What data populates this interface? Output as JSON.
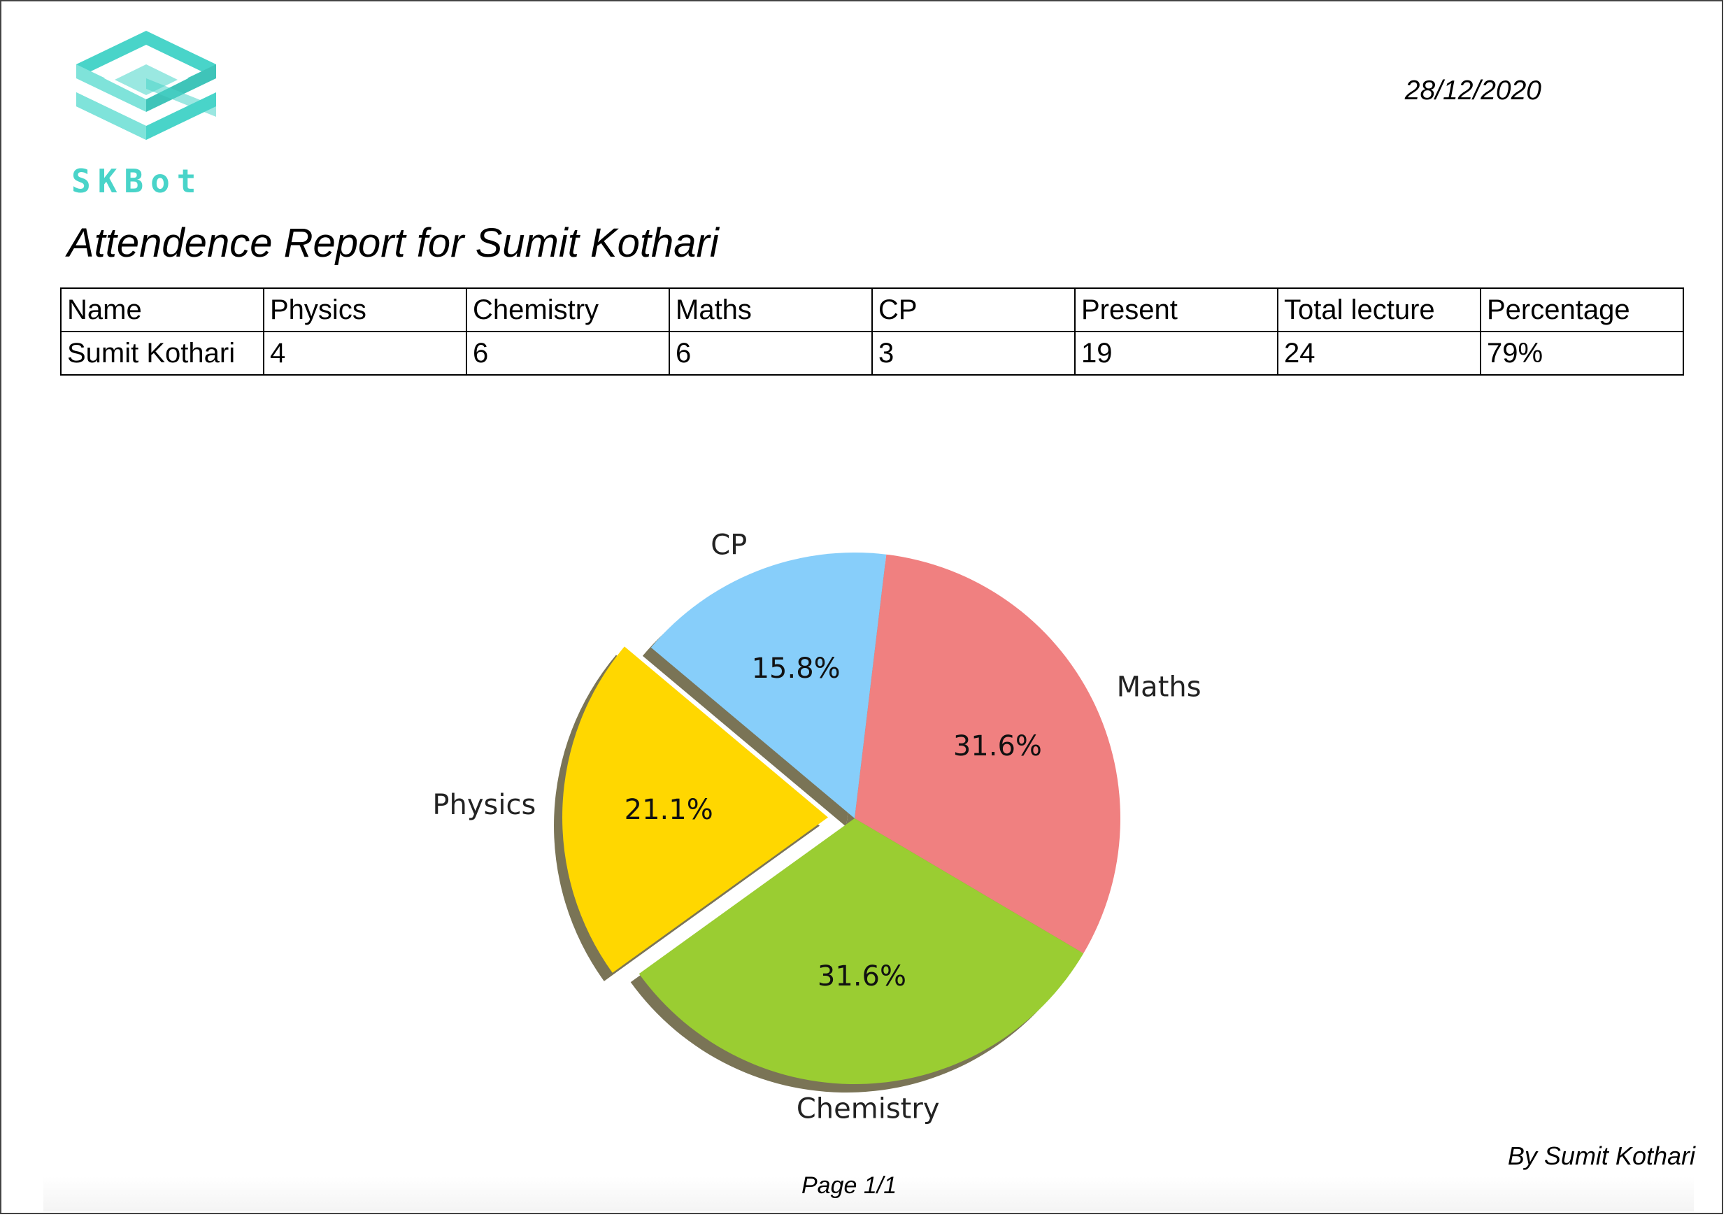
{
  "brand": {
    "logo_text": "SKBot",
    "logo_icon": "skbot-logo-icon",
    "accent": "#49d4c9"
  },
  "header": {
    "date": "28/12/2020"
  },
  "report": {
    "title": "Attendence Report for Sumit Kothari"
  },
  "table": {
    "headers": [
      "Name",
      "Physics",
      "Chemistry",
      "Maths",
      "CP",
      "Present",
      "Total lecture",
      "Percentage"
    ],
    "rows": [
      [
        "Sumit Kothari",
        "4",
        "6",
        "6",
        "3",
        "19",
        "24",
        "79%"
      ]
    ]
  },
  "chart_data": {
    "type": "pie",
    "categories": [
      "Physics",
      "Chemistry",
      "Maths",
      "CP"
    ],
    "values": [
      4,
      6,
      6,
      3
    ],
    "percent_labels": [
      "21.1%",
      "31.6%",
      "31.6%",
      "15.8%"
    ],
    "colors": [
      "#ffd700",
      "#9acd32",
      "#f08080",
      "#87cefa"
    ],
    "exploded": [
      "Physics"
    ],
    "shadow": true
  },
  "footer": {
    "byline": "By Sumit Kothari",
    "page": "Page 1/1"
  }
}
